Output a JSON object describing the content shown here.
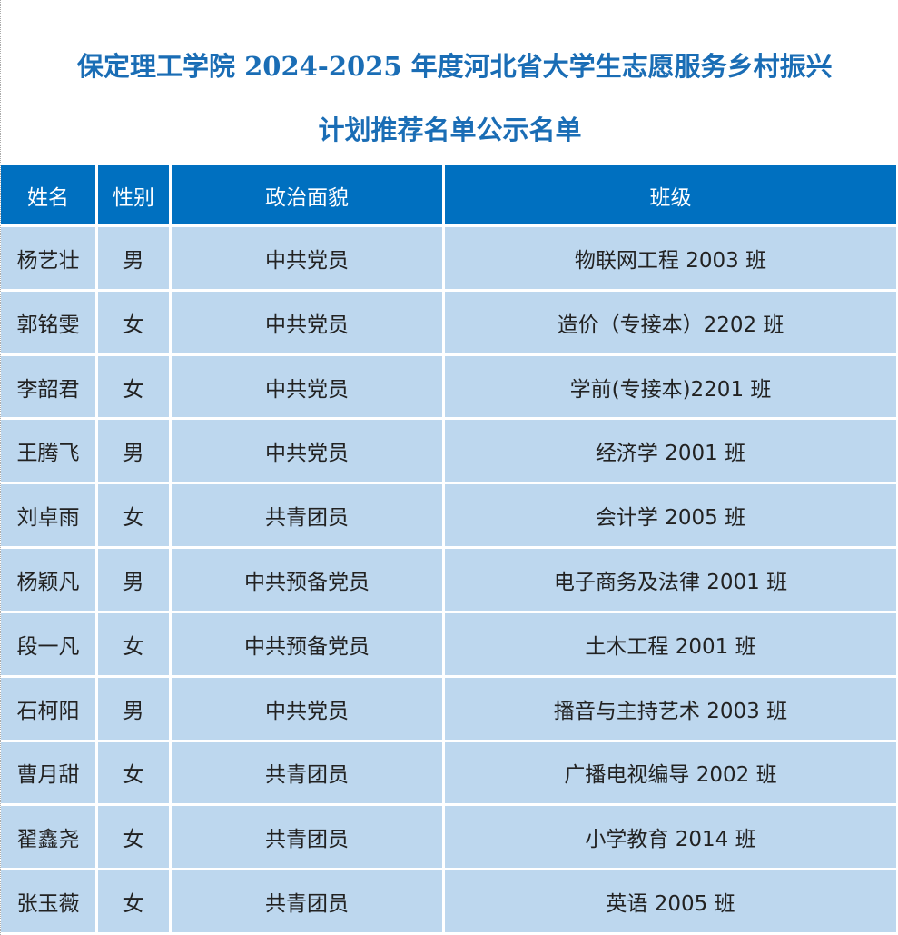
{
  "header": {
    "title_lines": [
      "保定理工学院 2024-2025 年度河北省大学生志愿服务乡村振兴",
      "计划推荐名单公示名单"
    ]
  },
  "table": {
    "columns": [
      "姓名",
      "性别",
      "政治面貌",
      "班级"
    ],
    "rows": [
      [
        "杨艺壮",
        "男",
        "中共党员",
        "物联网工程 2003 班"
      ],
      [
        "郭铭雯",
        "女",
        "中共党员",
        "造价（专接本）2202 班"
      ],
      [
        "李韶君",
        "女",
        "中共党员",
        "学前(专接本)2201 班"
      ],
      [
        "王腾飞",
        "男",
        "中共党员",
        "经济学 2001 班"
      ],
      [
        "刘卓雨",
        "女",
        "共青团员",
        "会计学 2005 班"
      ],
      [
        "杨颖凡",
        "男",
        "中共预备党员",
        "电子商务及法律 2001 班"
      ],
      [
        "段一凡",
        "女",
        "中共预备党员",
        "土木工程 2001 班"
      ],
      [
        "石柯阳",
        "男",
        "中共党员",
        "播音与主持艺术 2003 班"
      ],
      [
        "曹月甜",
        "女",
        "共青团员",
        "广播电视编导 2002 班"
      ],
      [
        "翟鑫尧",
        "女",
        "共青团员",
        "小学教育 2014 班"
      ],
      [
        "张玉薇",
        "女",
        "共青团员",
        "英语 2005 班"
      ]
    ]
  }
}
